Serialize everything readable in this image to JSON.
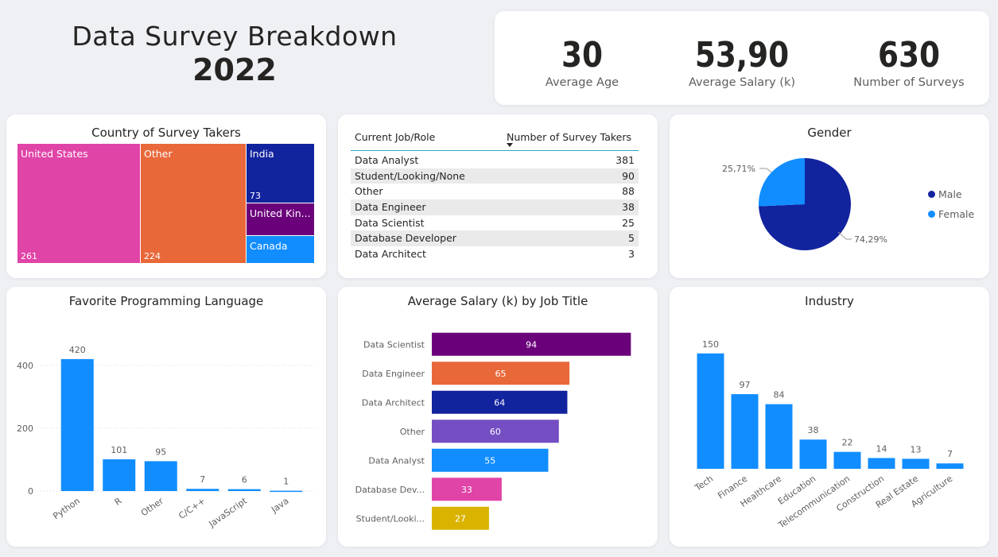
{
  "header": {
    "title_line1": "Data Survey Breakdown",
    "title_line2": "2022"
  },
  "kpis": [
    {
      "value": "30",
      "label": "Average Age"
    },
    {
      "value": "53,90",
      "label": "Average Salary (k)"
    },
    {
      "value": "630",
      "label": "Number of Surveys"
    }
  ],
  "colors": {
    "pink": "#e044a7",
    "orange": "#e8683a",
    "navy": "#12239e",
    "purple": "#6b007b",
    "blue": "#118dff",
    "violet": "#744ec2",
    "gold": "#d9b300"
  },
  "country_chart": {
    "title": "Country of Survey Takers",
    "cells": [
      {
        "label": "United States",
        "value": "261",
        "color": "#e044a7"
      },
      {
        "label": "Other",
        "value": "224",
        "color": "#e8683a"
      },
      {
        "label": "India",
        "value": "73",
        "color": "#12239e"
      },
      {
        "label": "United Kin...",
        "value": "",
        "color": "#6b007b"
      },
      {
        "label": "Canada",
        "value": "",
        "color": "#118dff"
      }
    ]
  },
  "job_table": {
    "col1": "Current Job/Role",
    "col2": "Number of Survey Takers",
    "rows": [
      {
        "role": "Data Analyst",
        "count": "381"
      },
      {
        "role": "Student/Looking/None",
        "count": "90"
      },
      {
        "role": "Other",
        "count": "88"
      },
      {
        "role": "Data Engineer",
        "count": "38"
      },
      {
        "role": "Data Scientist",
        "count": "25"
      },
      {
        "role": "Database Developer",
        "count": "5"
      },
      {
        "role": "Data Architect",
        "count": "3"
      }
    ]
  },
  "gender_chart": {
    "title": "Gender",
    "legend": [
      {
        "label": "Male",
        "color": "#12239e"
      },
      {
        "label": "Female",
        "color": "#118dff"
      }
    ],
    "male_pct_label": "74,29%",
    "female_pct_label": "25,71%"
  },
  "chart_data": [
    {
      "type": "treemap",
      "title": "Country of Survey Takers",
      "categories": [
        "United States",
        "Other",
        "India",
        "United Kingdom",
        "Canada"
      ],
      "values": [
        261,
        224,
        73,
        null,
        null
      ]
    },
    {
      "type": "table",
      "columns": [
        "Current Job/Role",
        "Number of Survey Takers"
      ],
      "rows": [
        [
          "Data Analyst",
          381
        ],
        [
          "Student/Looking/None",
          90
        ],
        [
          "Other",
          88
        ],
        [
          "Data Engineer",
          38
        ],
        [
          "Data Scientist",
          25
        ],
        [
          "Database Developer",
          5
        ],
        [
          "Data Architect",
          3
        ]
      ]
    },
    {
      "type": "pie",
      "title": "Gender",
      "categories": [
        "Male",
        "Female"
      ],
      "values": [
        74.29,
        25.71
      ],
      "colors": [
        "#12239e",
        "#118dff"
      ],
      "legend": "right"
    },
    {
      "type": "bar",
      "title": "Favorite Programming Language",
      "categories": [
        "Python",
        "R",
        "Other",
        "C/C++",
        "JavaScript",
        "Java"
      ],
      "values": [
        420,
        101,
        95,
        7,
        6,
        1
      ],
      "yticks": [
        "0",
        "200",
        "400"
      ],
      "ylim": [
        0,
        440
      ],
      "grid": true,
      "color": "#118dff"
    },
    {
      "type": "bar",
      "orientation": "horizontal",
      "title": "Average Salary (k) by Job Title",
      "categories": [
        "Data Scientist",
        "Data Engineer",
        "Data Architect",
        "Other",
        "Data Analyst",
        "Database Dev...",
        "Student/Looki..."
      ],
      "values": [
        94,
        65,
        64,
        60,
        55,
        33,
        27
      ],
      "colors": [
        "#6b007b",
        "#e8683a",
        "#12239e",
        "#744ec2",
        "#118dff",
        "#e044a7",
        "#d9b300"
      ],
      "xlim": [
        0,
        95
      ]
    },
    {
      "type": "bar",
      "title": "Industry",
      "categories": [
        "Tech",
        "Finance",
        "Healthcare",
        "Education",
        "Telecommunication",
        "Construction",
        "Real Estate",
        "Agriculture"
      ],
      "values": [
        150,
        97,
        84,
        38,
        22,
        14,
        13,
        7
      ],
      "ylim": [
        0,
        160
      ],
      "color": "#118dff"
    }
  ]
}
